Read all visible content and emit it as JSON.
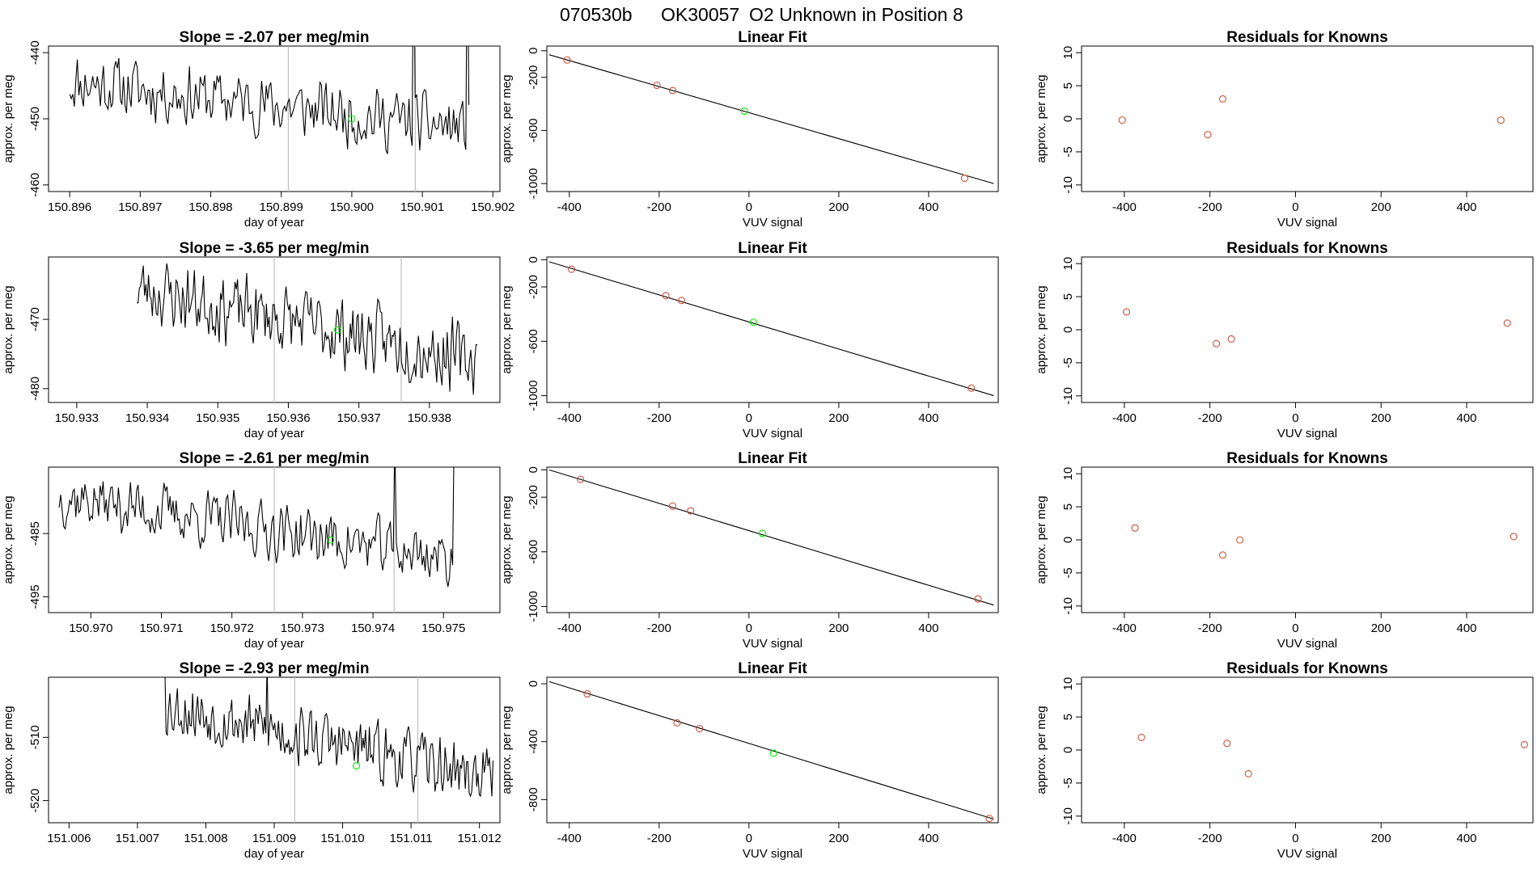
{
  "header": {
    "run_id": "070530b",
    "tank_id": "OK30057",
    "description": "O2 Unknown in Position  8"
  },
  "colors": {
    "line": "#000000",
    "marker_known": "#cd4f39",
    "marker_unknown": "#00ee00",
    "vline": "#c0c0c0",
    "fit": "#000000"
  },
  "chart_data": [
    {
      "type": "line",
      "row": 0,
      "col": 0,
      "title": "Slope =  -2.07  per meg/min",
      "xlabel": "day of year",
      "ylabel": "approx. per meg",
      "xlim": [
        150.8957,
        150.9021
      ],
      "ylim": [
        -461,
        -439
      ],
      "xticks": [
        150.896,
        150.897,
        150.898,
        150.899,
        150.9,
        150.901,
        150.902
      ],
      "xtick_labels": [
        "150.896",
        "150.897",
        "150.898",
        "150.899",
        "150.900",
        "150.901",
        "150.902"
      ],
      "yticks": [
        -460,
        -450,
        -440
      ],
      "ytick_labels": [
        "-460",
        "-450",
        "-440"
      ],
      "vlines": [
        150.8991,
        150.9009
      ],
      "series_start": 150.896,
      "series_end": 150.90166,
      "series_base": -444.3,
      "series_drift": -7.2,
      "series_amp": 2.4,
      "seed": 11,
      "spikes": [
        [
          150.90088,
          -420
        ],
        [
          150.90163,
          -420
        ]
      ],
      "marker": {
        "x": 150.9,
        "y": -450.0
      }
    },
    {
      "type": "scatter",
      "row": 0,
      "col": 1,
      "title": "Linear Fit",
      "xlabel": "VUV signal",
      "ylabel": "approx. per meg",
      "xlim": [
        -450,
        555
      ],
      "ylim": [
        -1060,
        35
      ],
      "xticks": [
        -400,
        -200,
        0,
        200,
        400
      ],
      "xtick_labels": [
        "-400",
        "-200",
        "0",
        "200",
        "400"
      ],
      "yticks": [
        -1000,
        -600,
        -200,
        0
      ],
      "ytick_labels": [
        "-1000",
        "-600",
        "-200",
        "0"
      ],
      "fit_line": {
        "x": [
          -445,
          545
        ],
        "y": [
          -30,
          -1000
        ]
      },
      "known_points": {
        "x": [
          -405,
          -205,
          -170,
          480
        ],
        "y": [
          -70,
          -260,
          -300,
          -960
        ]
      },
      "unknown_points": {
        "x": [
          -10
        ],
        "y": [
          -455
        ]
      }
    },
    {
      "type": "scatter",
      "row": 0,
      "col": 2,
      "title": "Residuals for Knowns",
      "xlabel": "VUV signal",
      "ylabel": "approx. per meg",
      "xlim": [
        -500,
        555
      ],
      "ylim": [
        -11,
        11
      ],
      "xticks": [
        -400,
        -200,
        0,
        200,
        400
      ],
      "xtick_labels": [
        "-400",
        "-200",
        "0",
        "200",
        "400"
      ],
      "yticks": [
        -10,
        -5,
        0,
        5,
        10
      ],
      "ytick_labels": [
        "-10",
        "-5",
        "0",
        "5",
        "10"
      ],
      "known_points": {
        "x": [
          -405,
          -205,
          -170,
          480
        ],
        "y": [
          -0.2,
          -2.4,
          3.0,
          -0.2
        ]
      }
    },
    {
      "type": "line",
      "row": 1,
      "col": 0,
      "title": "Slope =  -3.65  per meg/min",
      "xlabel": "day of year",
      "ylabel": "approx. per meg",
      "xlim": [
        150.9326,
        150.939
      ],
      "ylim": [
        -482,
        -461
      ],
      "xticks": [
        150.933,
        150.934,
        150.935,
        150.936,
        150.937,
        150.938
      ],
      "xtick_labels": [
        "150.933",
        "150.934",
        "150.935",
        "150.936",
        "150.937",
        "150.938"
      ],
      "yticks": [
        -480,
        -470
      ],
      "ytick_labels": [
        "-480",
        "-470"
      ],
      "vlines": [
        150.9358,
        150.9376
      ],
      "series_start": 150.93385,
      "series_end": 150.93868,
      "series_base": -465.5,
      "series_drift": -10.5,
      "series_amp": 2.6,
      "seed": 23,
      "spikes": [],
      "marker": {
        "x": 150.9367,
        "y": -471.5
      }
    },
    {
      "type": "scatter",
      "row": 1,
      "col": 1,
      "title": "Linear Fit",
      "xlabel": "VUV signal",
      "ylabel": "approx. per meg",
      "xlim": [
        -450,
        555
      ],
      "ylim": [
        -1050,
        20
      ],
      "xticks": [
        -400,
        -200,
        0,
        200,
        400
      ],
      "xtick_labels": [
        "-400",
        "-200",
        "0",
        "200",
        "400"
      ],
      "yticks": [
        -1000,
        -600,
        -200,
        0
      ],
      "ytick_labels": [
        "-1000",
        "-600",
        "-200",
        "0"
      ],
      "fit_line": {
        "x": [
          -445,
          545
        ],
        "y": [
          -15,
          -1000
        ]
      },
      "known_points": {
        "x": [
          -395,
          -185,
          -150,
          495
        ],
        "y": [
          -70,
          -265,
          -300,
          -945
        ]
      },
      "unknown_points": {
        "x": [
          10
        ],
        "y": [
          -460
        ]
      }
    },
    {
      "type": "scatter",
      "row": 1,
      "col": 2,
      "title": "Residuals for Knowns",
      "xlabel": "VUV signal",
      "ylabel": "approx. per meg",
      "xlim": [
        -500,
        555
      ],
      "ylim": [
        -11,
        11
      ],
      "xticks": [
        -400,
        -200,
        0,
        200,
        400
      ],
      "xtick_labels": [
        "-400",
        "-200",
        "0",
        "200",
        "400"
      ],
      "yticks": [
        -10,
        -5,
        0,
        5,
        10
      ],
      "ytick_labels": [
        "-10",
        "-5",
        "0",
        "5",
        "10"
      ],
      "known_points": {
        "x": [
          -395,
          -185,
          -150,
          495
        ],
        "y": [
          2.7,
          -2.1,
          -1.4,
          1.0
        ]
      }
    },
    {
      "type": "line",
      "row": 2,
      "col": 0,
      "title": "Slope =  -2.61  per meg/min",
      "xlabel": "day of year",
      "ylabel": "approx. per meg",
      "xlim": [
        150.9694,
        150.9758
      ],
      "ylim": [
        -497.5,
        -474.5
      ],
      "xticks": [
        150.97,
        150.971,
        150.972,
        150.973,
        150.974,
        150.975
      ],
      "xtick_labels": [
        "150.970",
        "150.971",
        "150.972",
        "150.973",
        "150.974",
        "150.975"
      ],
      "yticks": [
        -495,
        -485
      ],
      "ytick_labels": [
        "-495",
        "-485"
      ],
      "vlines": [
        150.9726,
        150.9743
      ],
      "series_start": 150.96955,
      "series_end": 150.97515,
      "series_base": -479.0,
      "series_drift": -10.0,
      "series_amp": 2.4,
      "seed": 37,
      "spikes": [
        [
          150.9743,
          -470
        ],
        [
          150.97515,
          -470
        ]
      ],
      "marker": {
        "x": 150.9734,
        "y": -486.0
      }
    },
    {
      "type": "scatter",
      "row": 2,
      "col": 1,
      "title": "Linear Fit",
      "xlabel": "VUV signal",
      "ylabel": "approx. per meg",
      "xlim": [
        -450,
        555
      ],
      "ylim": [
        -1045,
        20
      ],
      "xticks": [
        -400,
        -200,
        0,
        200,
        400
      ],
      "xtick_labels": [
        "-400",
        "-200",
        "0",
        "200",
        "400"
      ],
      "yticks": [
        -1000,
        -600,
        -200,
        0
      ],
      "ytick_labels": [
        "-1000",
        "-600",
        "-200",
        "0"
      ],
      "fit_line": {
        "x": [
          -445,
          545
        ],
        "y": [
          0,
          -990
        ]
      },
      "known_points": {
        "x": [
          -375,
          -170,
          -130,
          510
        ],
        "y": [
          -70,
          -265,
          -300,
          -945
        ]
      },
      "unknown_points": {
        "x": [
          30
        ],
        "y": [
          -465
        ]
      }
    },
    {
      "type": "scatter",
      "row": 2,
      "col": 2,
      "title": "Residuals for Knowns",
      "xlabel": "VUV signal",
      "ylabel": "approx. per meg",
      "xlim": [
        -500,
        555
      ],
      "ylim": [
        -11,
        11
      ],
      "xticks": [
        -400,
        -200,
        0,
        200,
        400
      ],
      "xtick_labels": [
        "-400",
        "-200",
        "0",
        "200",
        "400"
      ],
      "yticks": [
        -10,
        -5,
        0,
        5,
        10
      ],
      "ytick_labels": [
        "-10",
        "-5",
        "0",
        "5",
        "10"
      ],
      "known_points": {
        "x": [
          -375,
          -170,
          -130,
          510
        ],
        "y": [
          1.8,
          -2.3,
          0.0,
          0.5
        ]
      }
    },
    {
      "type": "line",
      "row": 3,
      "col": 0,
      "title": "Slope =  -2.93  per meg/min",
      "xlabel": "day of year",
      "ylabel": "approx. per meg",
      "xlim": [
        151.0057,
        151.0123
      ],
      "ylim": [
        -523.5,
        -500.5
      ],
      "xticks": [
        151.006,
        151.007,
        151.008,
        151.009,
        151.01,
        151.011,
        151.012
      ],
      "xtick_labels": [
        "151.006",
        "151.007",
        "151.008",
        "151.009",
        "151.010",
        "151.011",
        "151.012"
      ],
      "yticks": [
        -520,
        -510
      ],
      "ytick_labels": [
        "-520",
        "-510"
      ],
      "vlines": [
        151.0093,
        151.0111
      ],
      "series_start": 151.0074,
      "series_end": 151.0122,
      "series_base": -505.0,
      "series_drift": -11.5,
      "series_amp": 2.5,
      "seed": 53,
      "spikes": [
        [
          151.0074,
          -498
        ],
        [
          151.0089,
          -498
        ]
      ],
      "marker": {
        "x": 151.0102,
        "y": -514.5
      }
    },
    {
      "type": "scatter",
      "row": 3,
      "col": 1,
      "title": "Linear Fit",
      "xlabel": "VUV signal",
      "ylabel": "approx. per meg",
      "xlim": [
        -450,
        555
      ],
      "ylim": [
        -960,
        45
      ],
      "xticks": [
        -400,
        -200,
        0,
        200,
        400
      ],
      "xtick_labels": [
        "-400",
        "-200",
        "0",
        "200",
        "400"
      ],
      "yticks": [
        -800,
        -400,
        0
      ],
      "ytick_labels": [
        "-800",
        "-400",
        "0"
      ],
      "fit_line": {
        "x": [
          -445,
          545
        ],
        "y": [
          15,
          -935
        ]
      },
      "known_points": {
        "x": [
          -360,
          -160,
          -110,
          535
        ],
        "y": [
          -70,
          -270,
          -310,
          -930
        ]
      },
      "unknown_points": {
        "x": [
          55
        ],
        "y": [
          -480
        ]
      }
    },
    {
      "type": "scatter",
      "row": 3,
      "col": 2,
      "title": "Residuals for Knowns",
      "xlabel": "VUV signal",
      "ylabel": "approx. per meg",
      "xlim": [
        -500,
        555
      ],
      "ylim": [
        -11,
        11
      ],
      "xticks": [
        -400,
        -200,
        0,
        200,
        400
      ],
      "xtick_labels": [
        "-400",
        "-200",
        "0",
        "200",
        "400"
      ],
      "yticks": [
        -10,
        -5,
        0,
        5,
        10
      ],
      "ytick_labels": [
        "-10",
        "-5",
        "0",
        "5",
        "10"
      ],
      "known_points": {
        "x": [
          -360,
          -160,
          -110,
          535
        ],
        "y": [
          1.9,
          1.0,
          -3.6,
          0.8
        ]
      }
    }
  ]
}
